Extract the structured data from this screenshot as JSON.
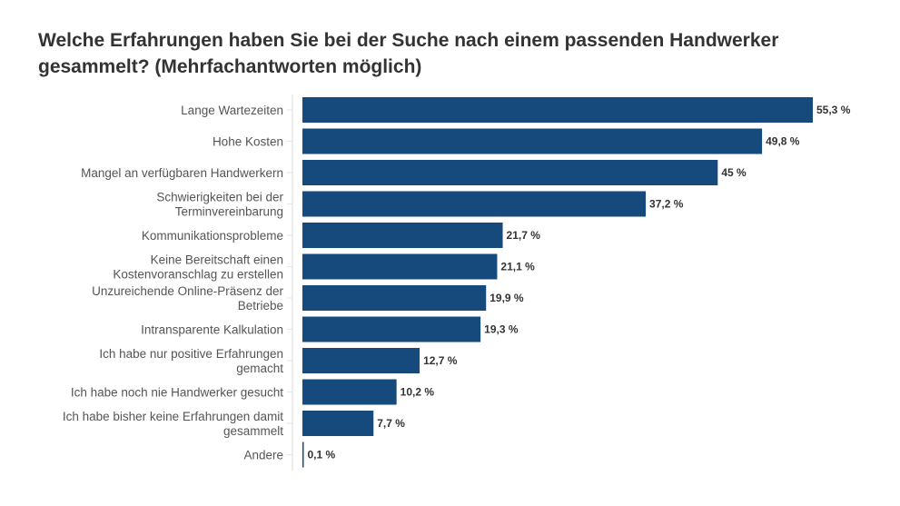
{
  "chart_data": {
    "type": "bar",
    "orientation": "horizontal",
    "title": "Welche Erfahrungen haben Sie bei der Suche nach einem passenden Handwerker gesammelt? (Mehrfachantworten möglich)",
    "categories": [
      [
        "Lange Wartezeiten"
      ],
      [
        "Hohe Kosten"
      ],
      [
        "Mangel an verfügbaren Handwerkern"
      ],
      [
        "Schwierigkeiten bei der",
        "Terminvereinbarung"
      ],
      [
        "Kommunikationsprobleme"
      ],
      [
        "Keine Bereitschaft einen",
        "Kostenvoranschlag zu erstellen"
      ],
      [
        "Unzureichende Online-Präsenz der",
        "Betriebe"
      ],
      [
        "Intransparente Kalkulation"
      ],
      [
        "Ich habe nur positive Erfahrungen",
        "gemacht"
      ],
      [
        "Ich habe noch nie Handwerker gesucht"
      ],
      [
        "Ich habe bisher keine Erfahrungen damit",
        "gesammelt"
      ],
      [
        "Andere"
      ]
    ],
    "values": [
      55.3,
      49.8,
      45,
      37.2,
      21.7,
      21.1,
      19.9,
      19.3,
      12.7,
      10.2,
      7.7,
      0.1
    ],
    "value_labels": [
      "55,3 %",
      "49,8 %",
      "45 %",
      "37,2 %",
      "21,7 %",
      "21,1 %",
      "19,9 %",
      "19,3 %",
      "12,7 %",
      "10,2 %",
      "7,7 %",
      "0,1 %"
    ],
    "unit": "%",
    "bar_color": "#174a7c",
    "grid": false,
    "legend": "none"
  }
}
